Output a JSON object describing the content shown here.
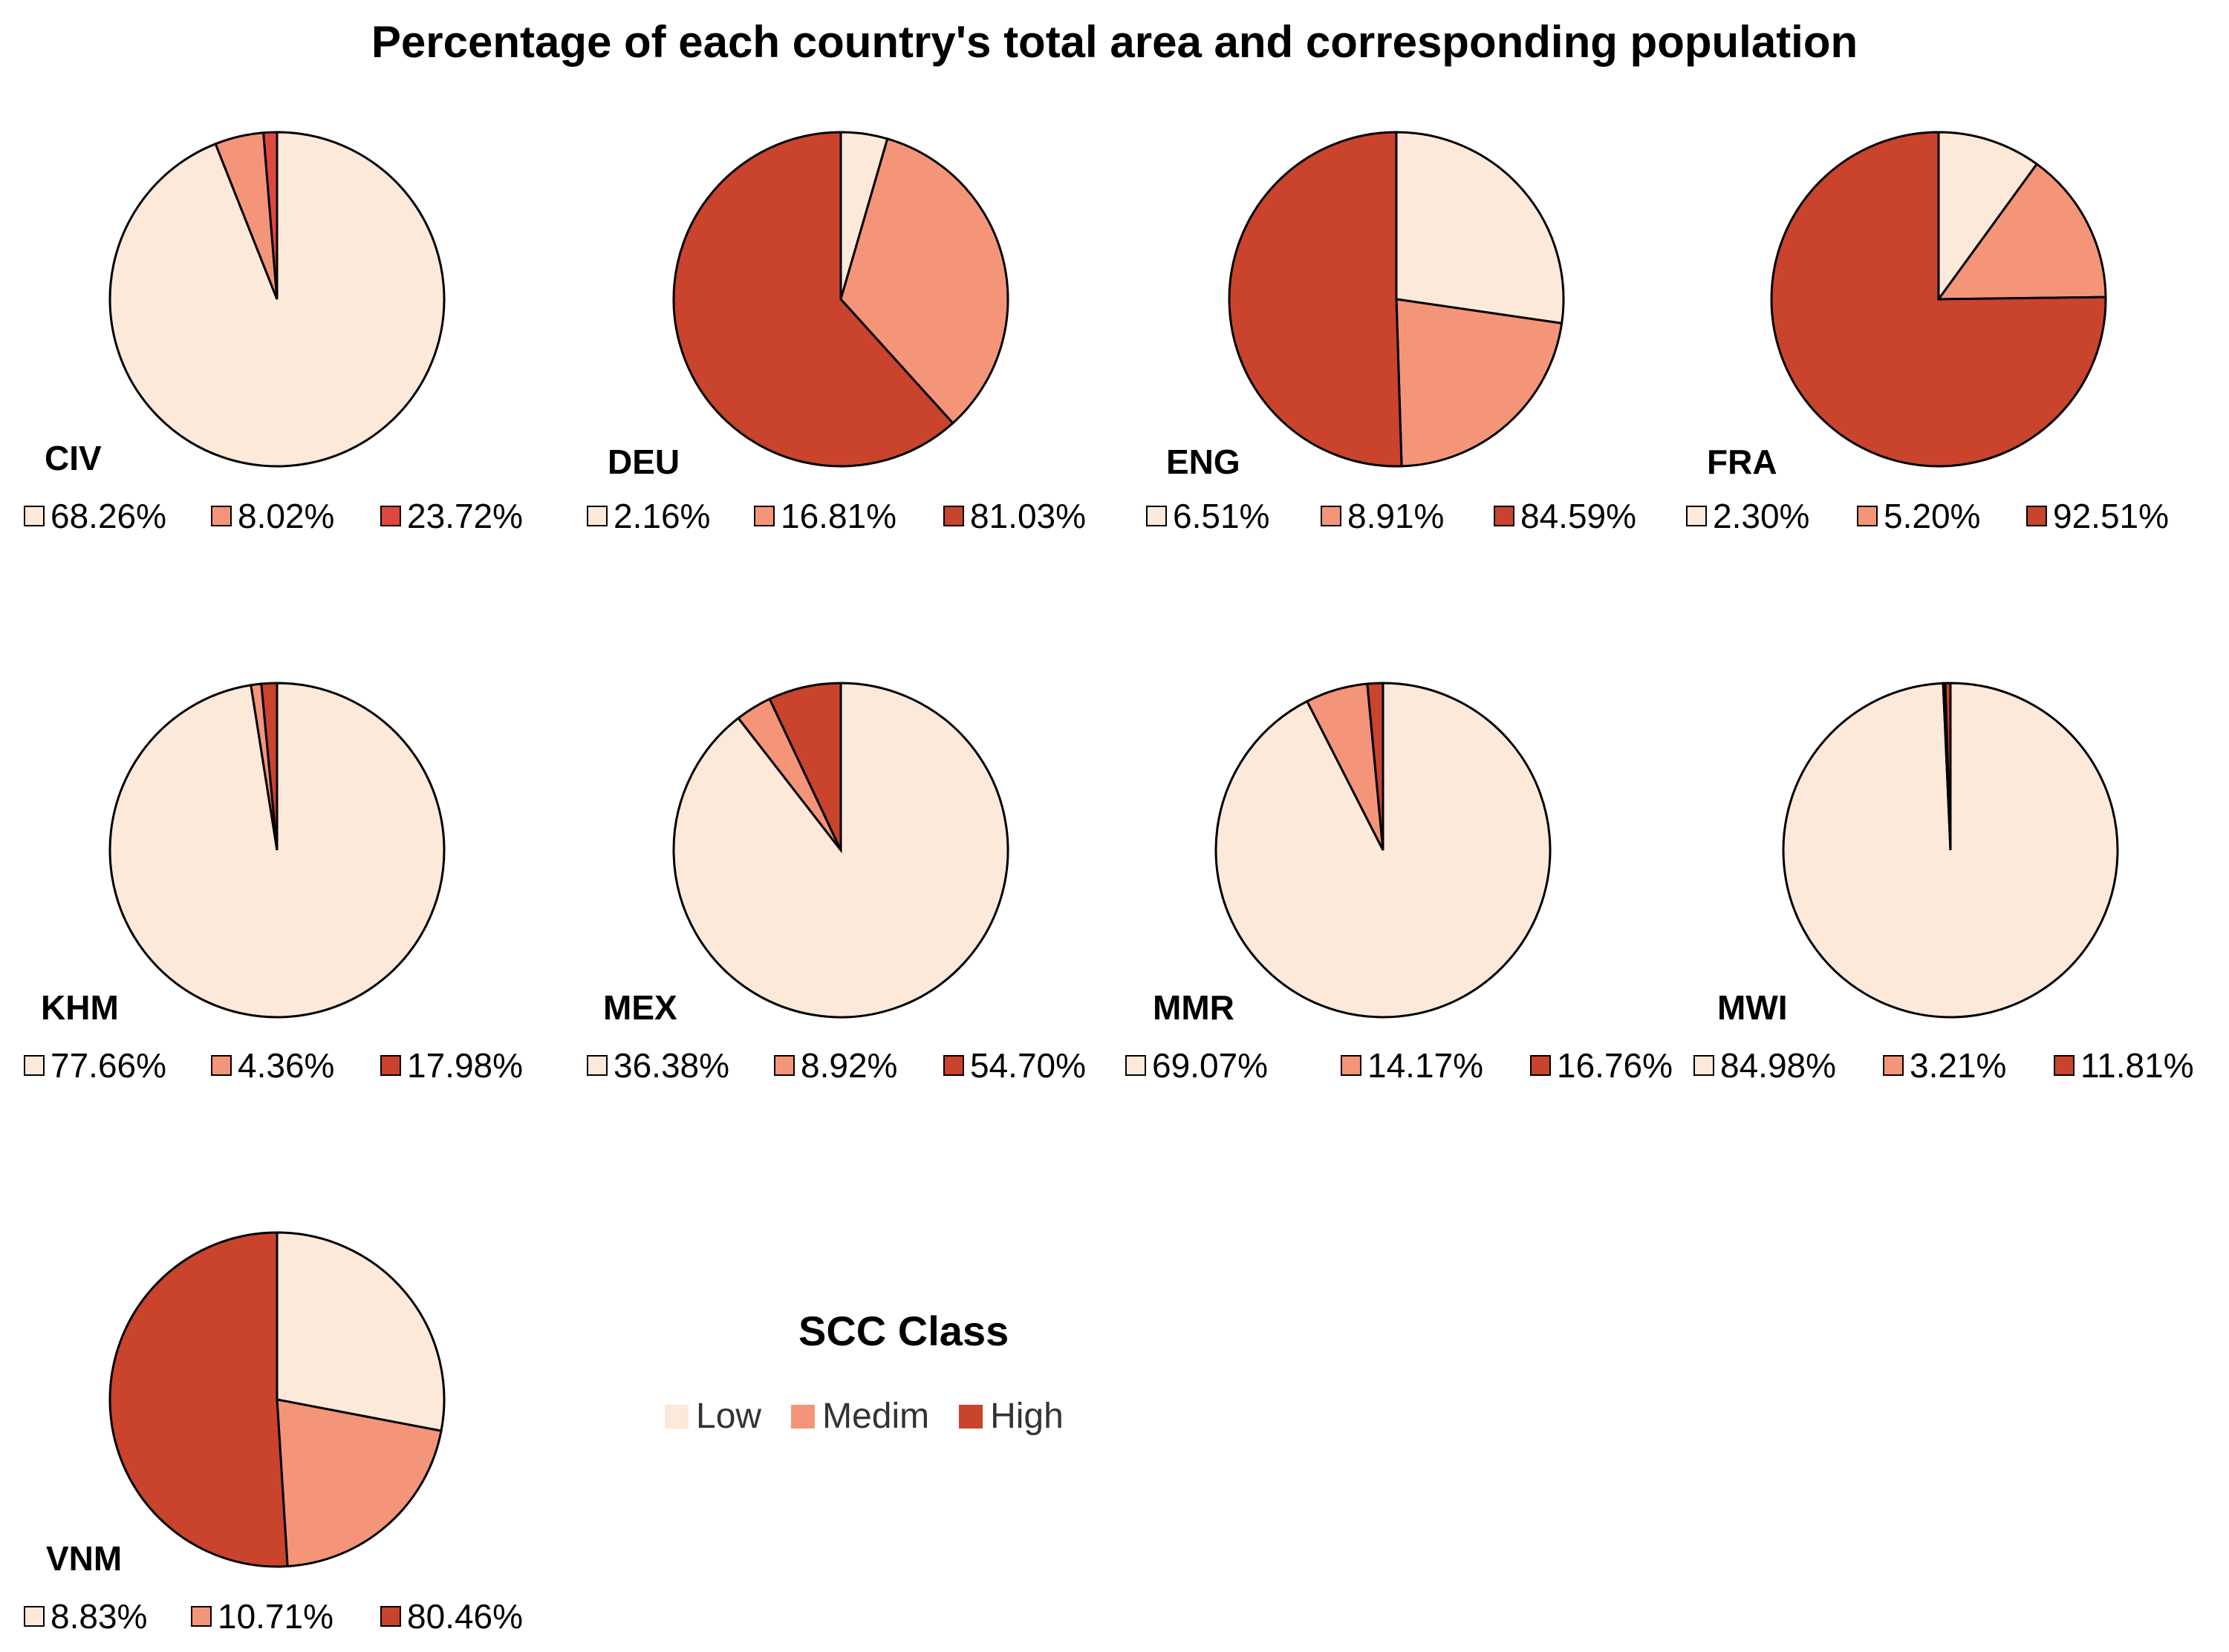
{
  "chart_data": {
    "type": "pie",
    "title": "Percentage of each country's total area and corresponding population",
    "legend_title": "SCC Class",
    "classes": [
      "Low",
      "Medim",
      "High"
    ],
    "colors": [
      "#fde9d9",
      "#f4957a",
      "#c9432d"
    ],
    "charts": [
      {
        "country": "CIV",
        "values": [
          94.0,
          4.7,
          1.3
        ],
        "labels": [
          "68.26%",
          "8.02%",
          "23.72%"
        ],
        "legend_colors": [
          "#fde9d9",
          "#f4957a",
          "#e0473e"
        ]
      },
      {
        "country": "DEU",
        "values": [
          4.5,
          33.8,
          61.7
        ],
        "labels": [
          "2.16%",
          "16.81%",
          "81.03%"
        ],
        "legend_colors": [
          "#fde9d9",
          "#f4957a",
          "#c9432d"
        ]
      },
      {
        "country": "ENG",
        "values": [
          27.3,
          22.2,
          50.5
        ],
        "labels": [
          "6.51%",
          "8.91%",
          "84.59%"
        ],
        "legend_colors": [
          "#fde9d9",
          "#f4957a",
          "#c9432d"
        ]
      },
      {
        "country": "FRA",
        "values": [
          10.0,
          14.8,
          75.2
        ],
        "labels": [
          "2.30%",
          "5.20%",
          "92.51%"
        ],
        "legend_colors": [
          "#fde9d9",
          "#f4957a",
          "#c9432d"
        ]
      },
      {
        "country": "KHM",
        "values": [
          97.5,
          1.0,
          1.5
        ],
        "labels": [
          "77.66%",
          "4.36%",
          "17.98%"
        ],
        "legend_colors": [
          "#fde9d9",
          "#f4957a",
          "#c9432d"
        ]
      },
      {
        "country": "MEX",
        "values": [
          89.5,
          3.5,
          7.0
        ],
        "labels": [
          "36.38%",
          "8.92%",
          "54.70%"
        ],
        "legend_colors": [
          "#fde9d9",
          "#f4957a",
          "#c9432d"
        ]
      },
      {
        "country": "MMR",
        "values": [
          92.5,
          6.0,
          1.5
        ],
        "labels": [
          "69.07%",
          "14.17%",
          "16.76%"
        ],
        "legend_colors": [
          "#fde9d9",
          "#f4957a",
          "#c9432d"
        ]
      },
      {
        "country": "MWI",
        "values": [
          99.3,
          0.2,
          0.5
        ],
        "labels": [
          "84.98%",
          "3.21%",
          "11.81%"
        ],
        "legend_colors": [
          "#fde9d9",
          "#f4957a",
          "#c9432d"
        ]
      },
      {
        "country": "VNM",
        "values": [
          28.0,
          21.0,
          51.0
        ],
        "labels": [
          "8.83%",
          "10.71%",
          "80.46%"
        ],
        "legend_colors": [
          "#fde9d9",
          "#f4957a",
          "#c9432d"
        ]
      }
    ]
  }
}
